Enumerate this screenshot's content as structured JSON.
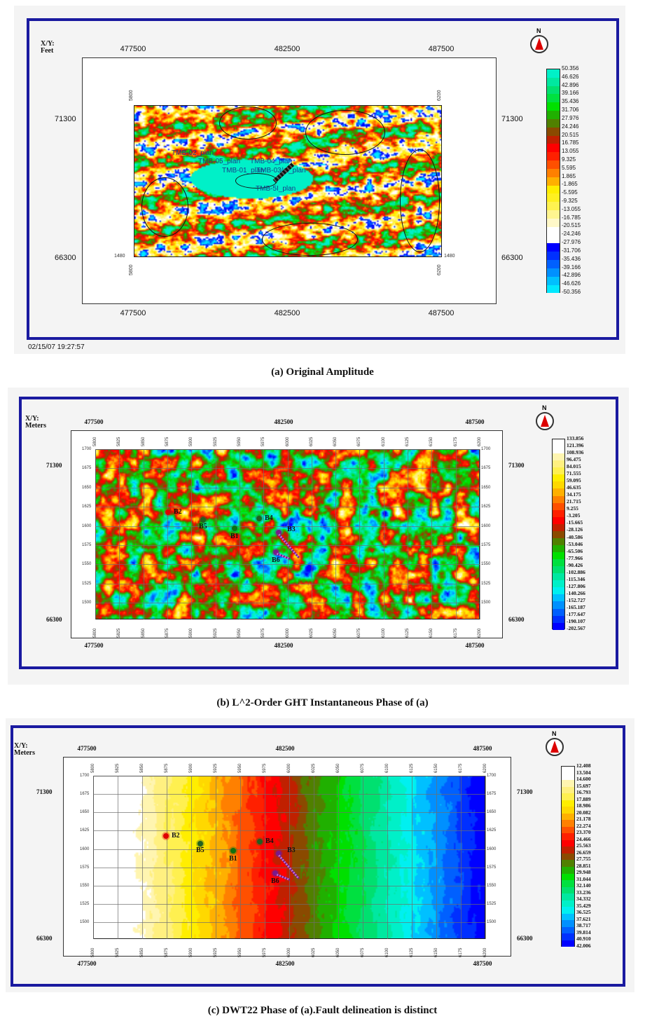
{
  "panels": [
    {
      "id": "a",
      "caption": "(a) Original Amplitude",
      "units_label": "X/Y:\nFeet",
      "x_ticks": [
        "477500",
        "482500",
        "487500"
      ],
      "y_ticks": [
        "71300",
        "66300"
      ],
      "corner_labels": {
        "inline_left": "5800",
        "inline_right": "6200",
        "xline": "1480"
      },
      "timestamp": "02/15/07  19:27:57",
      "north_label": "N",
      "wells": [
        "TMB-02_plan",
        "TMB-05_plan",
        "TMB-04_plan",
        "TMB-01_plan",
        "TMB-03/st_plan",
        "TMB-5I_plan"
      ],
      "legend": [
        "50.356",
        "46.626",
        "42.896",
        "39.166",
        "35.436",
        "31.706",
        "27.976",
        "24.246",
        "20.515",
        "16.785",
        "13.055",
        "9.325",
        "5.595",
        "1.865",
        "-1.865",
        "-5.595",
        "-9.325",
        "-13.055",
        "-16.785",
        "-20.515",
        "-24.246",
        "-27.976",
        "-31.706",
        "-35.436",
        "-39.166",
        "-42.896",
        "-46.626",
        "-50.356"
      ],
      "legend_colors": [
        "#00f0c8",
        "#00e8a0",
        "#00e070",
        "#00e040",
        "#00e000",
        "#20b000",
        "#508000",
        "#8a4a00",
        "#c02000",
        "#ff0000",
        "#ff2000",
        "#ff5000",
        "#ff8000",
        "#ffb000",
        "#ffee00",
        "#fff020",
        "#fff250",
        "#fff590",
        "#fff8c8",
        "#ffffff",
        "#ffffff",
        "#0000ff",
        "#0030ff",
        "#0060ff",
        "#0090ff",
        "#00c0ff",
        "#00e8ff"
      ]
    },
    {
      "id": "b",
      "caption": "(b) L^2-Order GHT Instantaneous Phase of (a)",
      "units_label": "X/Y:\nMeters",
      "x_ticks": [
        "477500",
        "482500",
        "487500"
      ],
      "y_ticks": [
        "71300",
        "66300"
      ],
      "inlines": [
        "5800",
        "5825",
        "5850",
        "5875",
        "5900",
        "5925",
        "5950",
        "5975",
        "6000",
        "6025",
        "6050",
        "6075",
        "6100",
        "6125",
        "6150",
        "6175",
        "6200"
      ],
      "xlines": [
        "1700",
        "1675",
        "1650",
        "1625",
        "1600",
        "1575",
        "1550",
        "1525",
        "1500"
      ],
      "north_label": "N",
      "wells": [
        "B2",
        "B5",
        "B1",
        "B4",
        "B3",
        "B6"
      ],
      "legend": [
        "133.856",
        "121.396",
        "108.936",
        "96.475",
        "84.015",
        "71.555",
        "59.095",
        "46.635",
        "34.175",
        "21.715",
        "9.255",
        "-3.205",
        "-15.665",
        "-28.126",
        "-40.586",
        "-53.046",
        "-65.506",
        "-77.966",
        "-90.426",
        "-102.886",
        "-115.346",
        "-127.806",
        "-140.266",
        "-152.727",
        "-165.187",
        "-177.647",
        "-190.107",
        "-202.567"
      ],
      "legend_colors": [
        "#ffffff",
        "#ffffff",
        "#fff5b0",
        "#fff080",
        "#fff050",
        "#ffee00",
        "#ffd800",
        "#ffb000",
        "#ff8000",
        "#ff5000",
        "#ff2000",
        "#ff0000",
        "#c02000",
        "#8a4a00",
        "#508000",
        "#20b000",
        "#00e000",
        "#00e040",
        "#00e070",
        "#00e8a0",
        "#00f0c8",
        "#00f0f0",
        "#00c0ff",
        "#0090ff",
        "#0060ff",
        "#0030ff",
        "#0000ff"
      ]
    },
    {
      "id": "c",
      "caption": "(c) DWT22 Phase of (a).Fault delineation is distinct",
      "units_label": "X/Y:\nMeters",
      "x_ticks": [
        "477500",
        "482500",
        "487500"
      ],
      "y_ticks": [
        "71300",
        "66300"
      ],
      "inlines": [
        "5800",
        "5825",
        "5850",
        "5875",
        "5900",
        "5925",
        "5950",
        "5975",
        "6000",
        "6025",
        "6050",
        "6075",
        "6100",
        "6125",
        "6150",
        "6175",
        "6200"
      ],
      "xlines": [
        "1700",
        "1675",
        "1650",
        "1625",
        "1600",
        "1575",
        "1550",
        "1525",
        "1500"
      ],
      "north_label": "N",
      "wells": [
        "B2",
        "B5",
        "B1",
        "B4",
        "B3",
        "B6"
      ],
      "legend": [
        "12.408",
        "13.504",
        "14.600",
        "15.697",
        "16.793",
        "17.889",
        "18.986",
        "20.082",
        "21.178",
        "22.274",
        "23.370",
        "24.466",
        "25.563",
        "26.659",
        "27.755",
        "28.851",
        "29.948",
        "31.044",
        "32.140",
        "33.236",
        "34.332",
        "35.429",
        "36.525",
        "37.621",
        "38.717",
        "39.814",
        "40.910",
        "42.006"
      ],
      "legend_colors": [
        "#ffffff",
        "#ffffff",
        "#fff5b0",
        "#fff080",
        "#fff050",
        "#ffee00",
        "#ffd800",
        "#ffb000",
        "#ff8000",
        "#ff5000",
        "#ff2000",
        "#ff0000",
        "#c02000",
        "#8a4a00",
        "#508000",
        "#20b000",
        "#00e000",
        "#00e040",
        "#00e070",
        "#00e8a0",
        "#00f0c8",
        "#00f0f0",
        "#00c0ff",
        "#0090ff",
        "#0060ff",
        "#0030ff",
        "#0000ff"
      ]
    }
  ]
}
